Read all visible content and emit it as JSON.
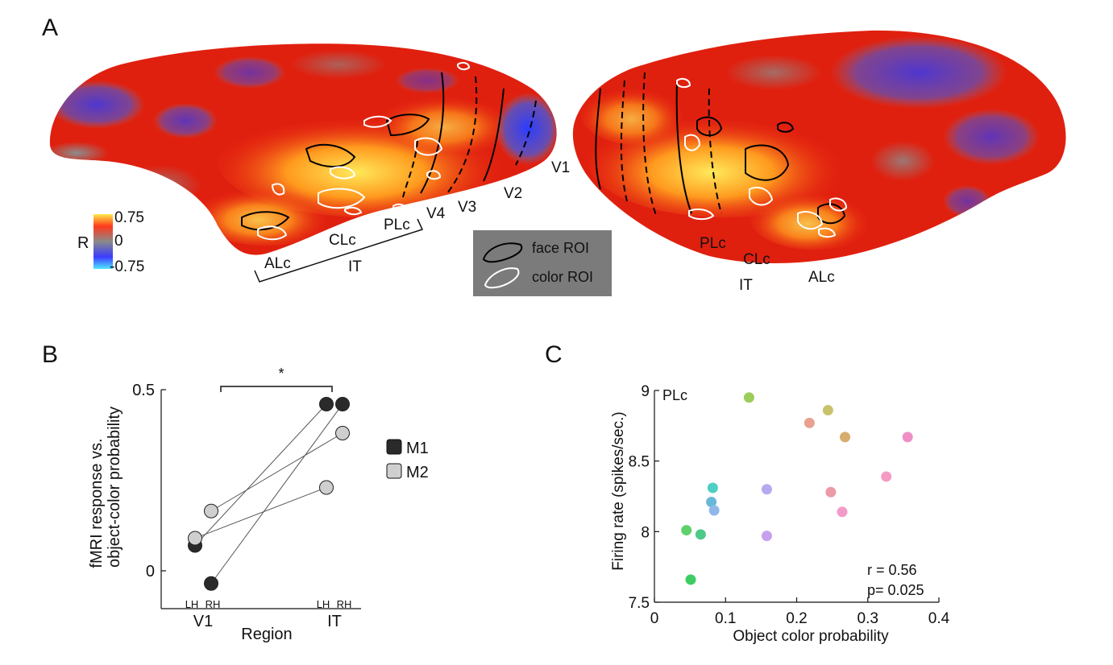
{
  "panelA": {
    "label": "A",
    "colorbar": {
      "title": "R",
      "max": "0.75",
      "mid": "0",
      "min": "-0.75"
    },
    "left_hemisphere_labels": [
      "V1",
      "V2",
      "V3",
      "V4",
      "PLc",
      "CLc",
      "ALc",
      "IT"
    ],
    "right_hemisphere_labels": [
      "PLc",
      "CLc",
      "IT",
      "ALc"
    ],
    "legend": {
      "face": "face ROI",
      "color": "color ROI"
    }
  },
  "panelB": {
    "label": "B",
    "ylabel_line1": "fMRI response vs.",
    "ylabel_line2": "object-color probability",
    "xlabel": "Region",
    "significance": "*",
    "legend": [
      "M1",
      "M2"
    ],
    "hemi_labels": {
      "lh": "LH",
      "rh": "RH"
    }
  },
  "panelC": {
    "label": "C",
    "region_label": "PLc",
    "stats": {
      "r": "r = 0.56",
      "p": "p= 0.025"
    }
  },
  "chart_data": [
    {
      "type": "line",
      "xlabel": "Region",
      "ylabel": "fMRI response vs. object-color probability",
      "categories": [
        "V1",
        "IT"
      ],
      "sub_categories": [
        "LH",
        "RH"
      ],
      "ylim": [
        -0.15,
        0.5
      ],
      "yticks": [
        0,
        0.5
      ],
      "significance": "*",
      "series": [
        {
          "name": "M1",
          "color": "#2a2a2a",
          "lh": [
            0.07,
            0.46
          ],
          "rh": [
            -0.035,
            0.46
          ]
        },
        {
          "name": "M2",
          "color": "#cfcfcf",
          "lh": [
            0.09,
            0.23
          ],
          "rh": [
            0.165,
            0.38
          ]
        }
      ]
    },
    {
      "type": "scatter",
      "title": "PLc",
      "xlabel": "Object color probability",
      "ylabel": "Firing rate (spikes/sec.)",
      "xlim": [
        0,
        0.4
      ],
      "ylim": [
        7.5,
        9
      ],
      "xticks": [
        0,
        0.1,
        0.2,
        0.3,
        0.4
      ],
      "yticks": [
        7.5,
        8,
        8.5,
        9
      ],
      "points": [
        {
          "x": 0.045,
          "y": 8.01,
          "color": "#5fd16a"
        },
        {
          "x": 0.065,
          "y": 7.98,
          "color": "#4dc98a"
        },
        {
          "x": 0.051,
          "y": 7.66,
          "color": "#3fcd63"
        },
        {
          "x": 0.082,
          "y": 8.31,
          "color": "#4fcfc4"
        },
        {
          "x": 0.08,
          "y": 8.21,
          "color": "#6ab8d8"
        },
        {
          "x": 0.084,
          "y": 8.15,
          "color": "#8fb7ea"
        },
        {
          "x": 0.133,
          "y": 8.95,
          "color": "#9ccc5a"
        },
        {
          "x": 0.158,
          "y": 8.3,
          "color": "#b3aaf0"
        },
        {
          "x": 0.158,
          "y": 7.97,
          "color": "#c7a0f0"
        },
        {
          "x": 0.218,
          "y": 8.77,
          "color": "#e8a08f"
        },
        {
          "x": 0.244,
          "y": 8.86,
          "color": "#c8c36a"
        },
        {
          "x": 0.268,
          "y": 8.67,
          "color": "#d6ad6e"
        },
        {
          "x": 0.248,
          "y": 8.28,
          "color": "#ec9aa6"
        },
        {
          "x": 0.264,
          "y": 8.14,
          "color": "#f39bc8"
        },
        {
          "x": 0.326,
          "y": 8.39,
          "color": "#f59ac5"
        },
        {
          "x": 0.356,
          "y": 8.67,
          "color": "#ef8fc6"
        }
      ]
    }
  ]
}
